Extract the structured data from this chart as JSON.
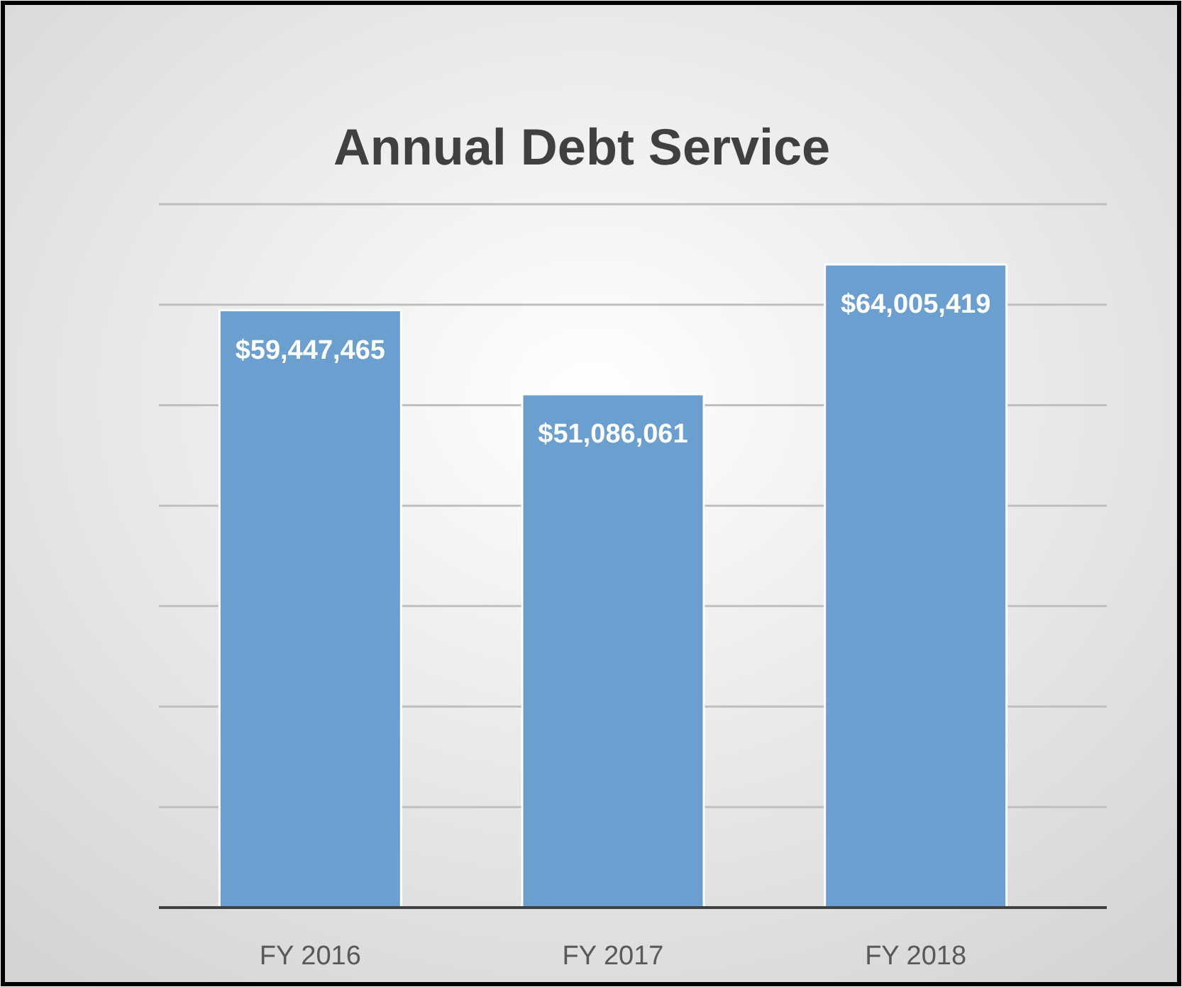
{
  "chart_data": {
    "type": "bar",
    "title": "Annual Debt Service",
    "categories": [
      "FY 2016",
      "FY 2017",
      "FY 2018"
    ],
    "values": [
      59447465,
      51086061,
      64005419
    ],
    "value_labels": [
      "$59,447,465",
      "$51,086,061",
      "$64,005,419"
    ],
    "color": "#6a9fd0",
    "ylim": [
      0,
      70000000
    ],
    "yticks": [
      {
        "value": 0,
        "label": null
      },
      {
        "value": 10000000,
        "label": null
      },
      {
        "value": 20000000,
        "label": null
      },
      {
        "value": 30000000,
        "label": null
      },
      {
        "value": 40000000,
        "label": null
      },
      {
        "value": 50000000,
        "label": null
      },
      {
        "value": 60000000,
        "label": null
      },
      {
        "value": 70000000,
        "label": null
      }
    ],
    "tick_labels": "x",
    "grid": "y"
  }
}
